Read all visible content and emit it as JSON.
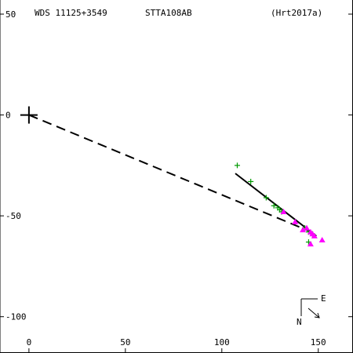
{
  "header": {
    "star_id": "WDS 11125+3549",
    "discoverer": "STTA108AB",
    "reference": "(Hrt2017a)"
  },
  "compass": {
    "east": "E",
    "north": "N"
  },
  "colors": {
    "axes": "#000000",
    "measure_plus": "#009900",
    "measure_triangle": "#ff00ff",
    "orbit_line": "#000000",
    "to_primary_line": "#000000"
  },
  "chart_data": {
    "type": "scatter",
    "title": "",
    "xlabel": "",
    "ylabel": "",
    "xlim": [
      -15,
      168
    ],
    "ylim": [
      -118,
      57
    ],
    "x_ticks": [
      0,
      50,
      100,
      150
    ],
    "y_ticks": [
      50,
      0,
      -50,
      -100
    ],
    "x_tick_labels": [
      "0",
      "50",
      "100",
      "150"
    ],
    "y_tick_labels": [
      "50",
      "0",
      "-50",
      "-100"
    ],
    "grid": false,
    "primary": {
      "x": 0,
      "y": 0,
      "marker": "cross"
    },
    "dashed_line": {
      "from": [
        0,
        0
      ],
      "to": [
        149,
        -59
      ]
    },
    "fit_line": {
      "from": [
        107,
        -29
      ],
      "to": [
        149,
        -60
      ]
    },
    "series": [
      {
        "marker": "plus",
        "color": "#009900",
        "points": [
          [
            108,
            -25
          ],
          [
            115,
            -33
          ],
          [
            123,
            -41
          ],
          [
            127,
            -45
          ],
          [
            129,
            -46
          ],
          [
            130,
            -47
          ],
          [
            131,
            -48
          ],
          [
            143,
            -56
          ],
          [
            145,
            -58
          ],
          [
            147,
            -59
          ],
          [
            145,
            -63
          ]
        ]
      },
      {
        "marker": "triangle",
        "color": "#ff00ff",
        "points": [
          [
            132,
            -48
          ],
          [
            138,
            -53
          ],
          [
            142,
            -57
          ],
          [
            144,
            -56
          ],
          [
            146,
            -58
          ],
          [
            147,
            -59
          ],
          [
            148,
            -60
          ],
          [
            152,
            -62
          ],
          [
            146,
            -64
          ]
        ]
      }
    ]
  }
}
